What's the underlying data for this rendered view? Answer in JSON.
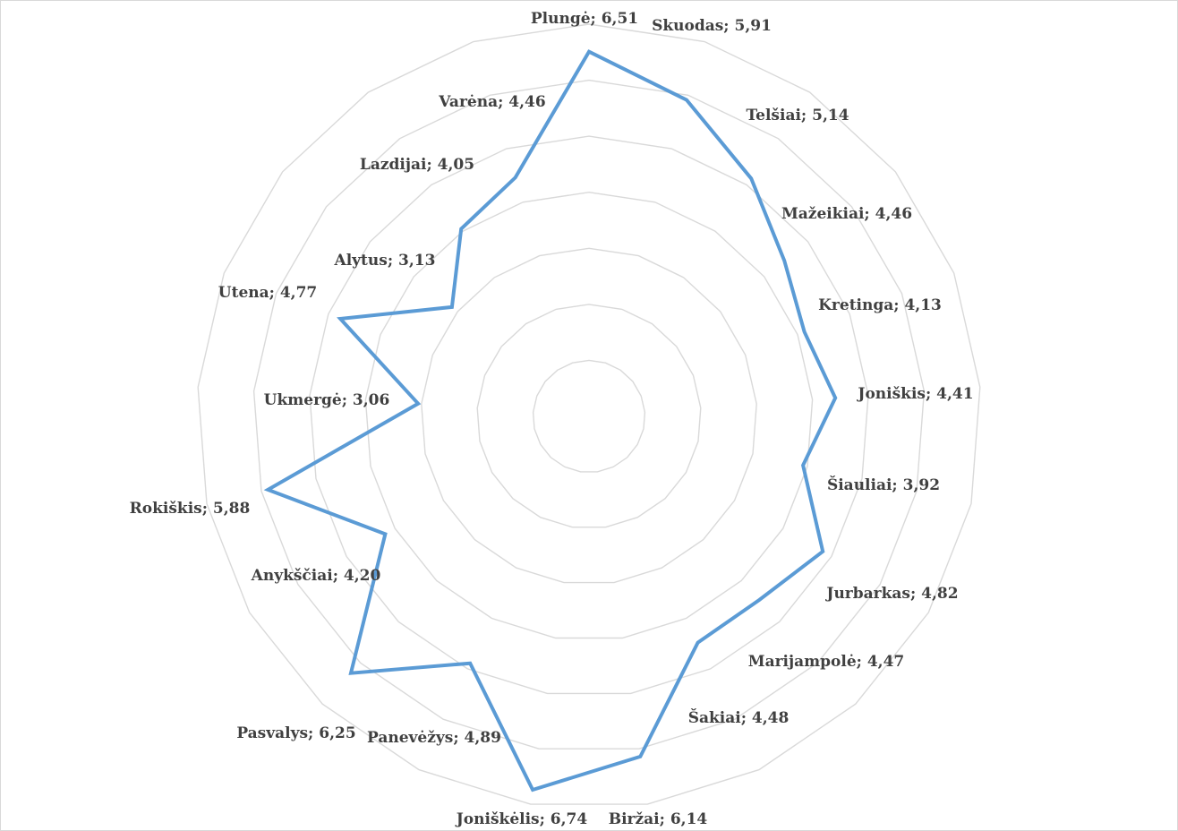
{
  "chart_data": {
    "type": "radar",
    "title": "",
    "grid": true,
    "legend": "none",
    "rmax": 7,
    "ring_count": 7,
    "series": [
      {
        "color": "#5b9bd5",
        "values": [
          6.51,
          5.91,
          5.14,
          4.46,
          4.13,
          4.41,
          3.92,
          4.82,
          4.47,
          4.48,
          6.14,
          6.74,
          4.89,
          6.25,
          4.2,
          5.88,
          3.06,
          4.77,
          3.13,
          4.05,
          4.46
        ]
      }
    ],
    "categories": [
      "Plungė",
      "Skuodas",
      "Telšiai",
      "Mažeikiai",
      "Kretinga",
      "Joniškis",
      "Šiauliai",
      "Jurbarkas",
      "Marijampolė",
      "Šakiai",
      "Biržai",
      "Joniškėlis",
      "Panevėžys",
      "Pasvalys",
      "Anykščiai",
      "Rokiškis",
      "Ukmergė",
      "Utena",
      "Alytus",
      "Lazdijai",
      "Varėna"
    ],
    "labels": [
      "Plungė; 6,51",
      "Skuodas; 5,91",
      "Telšiai; 5,14",
      "Mažeikiai; 4,46",
      "Kretinga; 4,13",
      "Joniškis; 4,41",
      "Šiauliai; 3,92",
      "Jurbarkas; 4,82",
      "Marijampolė; 4,47",
      "Šakiai; 4,48",
      "Biržai; 6,14",
      "Joniškėlis; 6,74",
      "Panevėžys; 4,89",
      "Pasvalys; 6,25",
      "Anykščiai; 4,20",
      "Rokiškis; 5,88",
      "Ukmergė; 3,06",
      "Utena; 4,77",
      "Alytus; 3,13",
      "Lazdijai; 4,05",
      "Varėna; 4,46"
    ]
  }
}
